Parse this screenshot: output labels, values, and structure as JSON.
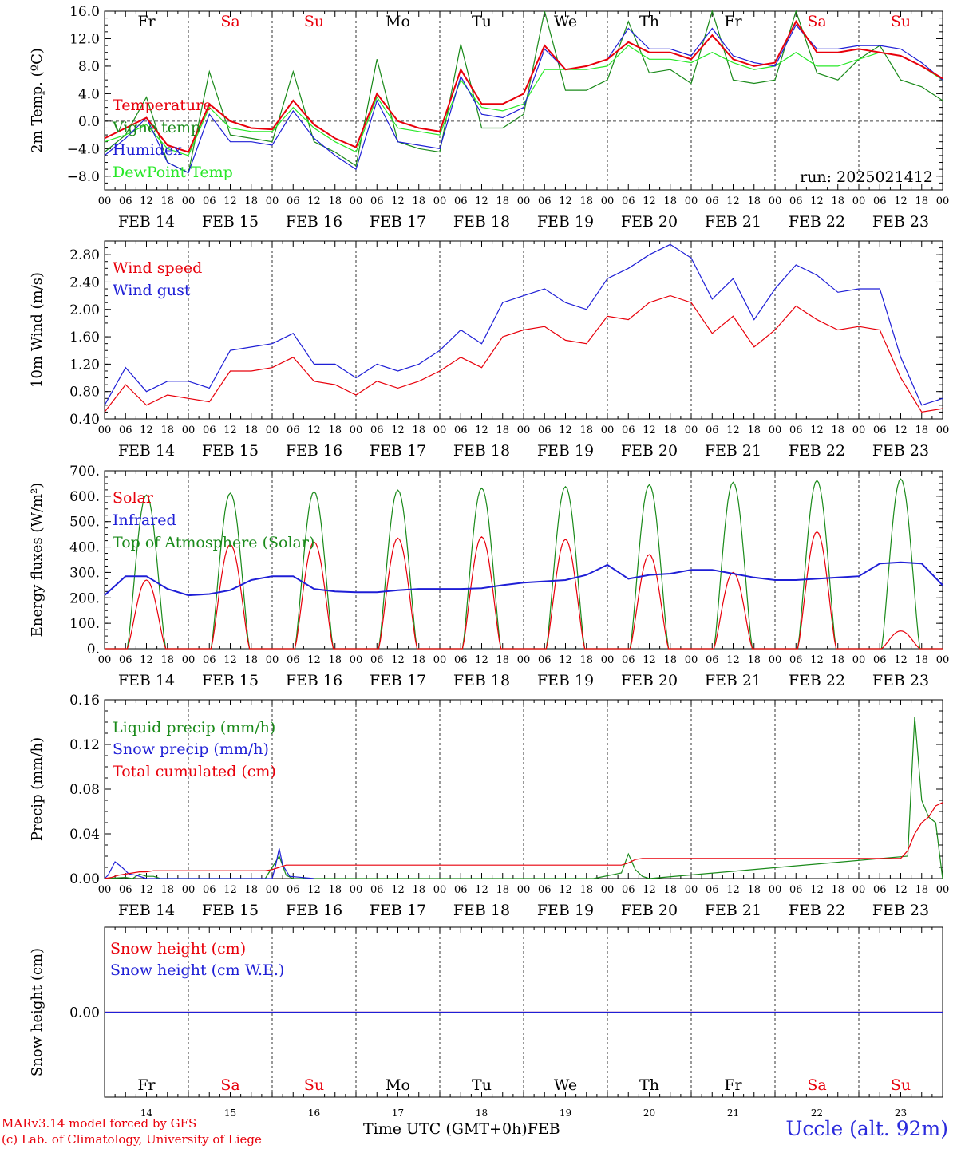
{
  "meteogram": {
    "run_label": "run: 2025021412",
    "day_names": [
      "Fr",
      "Sa",
      "Su",
      "Mo",
      "Tu",
      "We",
      "Th",
      "Fr",
      "Sa",
      "Su"
    ],
    "day_colors": [
      "#000000",
      "#e8000b",
      "#e8000b",
      "#000000",
      "#000000",
      "#000000",
      "#000000",
      "#000000",
      "#e8000b",
      "#e8000b"
    ],
    "date_labels": [
      "FEB 14",
      "FEB 15",
      "FEB 16",
      "FEB 17",
      "FEB 18",
      "FEB 19",
      "FEB 20",
      "FEB 21",
      "FEB 22",
      "FEB 23"
    ],
    "hour_labels": [
      "00",
      "06",
      "12",
      "18"
    ],
    "last_hour_label": "00",
    "bottom_day_numbers": [
      "14",
      "15",
      "16",
      "17",
      "18",
      "19",
      "20",
      "21",
      "22",
      "23"
    ],
    "x_title": "Time UTC (GMT+0h)",
    "x_month": "FEB",
    "credit_1": "MARv3.14 model forced by GFS",
    "credit_2": "(c) Lab. of Climatology, University of Liege",
    "station": "Uccle (alt. 92m)"
  },
  "chart_data": [
    {
      "type": "line",
      "ylabel": "2m Temp. (ºC)",
      "ylim": [
        -10,
        16
      ],
      "yticks": [
        -8,
        -4,
        0,
        4,
        8,
        12,
        16
      ],
      "ytick_labels": [
        "−8.0",
        "−4.0",
        "0.0",
        "4.0",
        "8.0",
        "12.0",
        "16.0"
      ],
      "x_unit": "hours since FEB 14 00 UTC",
      "x_range": [
        0,
        240
      ],
      "zero_line": true,
      "series": [
        {
          "name": "Temperature",
          "color": "#e8000b",
          "x": [
            0,
            6,
            12,
            18,
            24,
            30,
            36,
            42,
            48,
            54,
            60,
            66,
            72,
            78,
            84,
            90,
            96,
            102,
            108,
            114,
            120,
            126,
            132,
            138,
            144,
            150,
            156,
            162,
            168,
            174,
            180,
            186,
            192,
            198,
            204,
            210,
            216,
            222,
            228,
            234,
            240
          ],
          "y": [
            -2.5,
            -1,
            0.5,
            -3.5,
            -4.5,
            2.5,
            0,
            -1,
            -1.2,
            3,
            -0.5,
            -2.5,
            -3.8,
            4,
            0,
            -1,
            -1.5,
            7.5,
            2.5,
            2.5,
            4,
            11,
            7.5,
            8,
            9,
            11.5,
            10,
            10,
            9,
            12.5,
            9,
            8,
            8.5,
            14.5,
            10,
            10,
            10.5,
            10,
            9.5,
            8,
            6.2
          ]
        },
        {
          "name": "Vigne temp",
          "color": "#1a8a1a",
          "x": [
            0,
            6,
            12,
            18,
            24,
            30,
            36,
            42,
            48,
            54,
            60,
            66,
            72,
            78,
            84,
            90,
            96,
            102,
            108,
            114,
            120,
            126,
            132,
            138,
            144,
            150,
            156,
            162,
            168,
            174,
            180,
            186,
            192,
            198,
            204,
            210,
            216,
            222,
            228,
            234,
            240
          ],
          "y": [
            -4.5,
            -2,
            3.5,
            -6,
            -7.5,
            7.2,
            -2,
            -2.5,
            -3,
            7.2,
            -3,
            -4.5,
            -6.5,
            9,
            -3,
            -4,
            -4.5,
            11.2,
            -1,
            -1,
            1,
            16,
            4.5,
            4.5,
            6,
            14.5,
            7,
            7.5,
            5.5,
            16,
            6,
            5.5,
            6,
            17,
            7,
            6,
            9,
            11,
            6,
            5,
            3
          ]
        },
        {
          "name": "Humidex",
          "color": "#1f1fd6",
          "x": [
            0,
            6,
            12,
            18,
            24,
            30,
            36,
            42,
            48,
            54,
            60,
            66,
            72,
            78,
            84,
            90,
            96,
            102,
            108,
            114,
            120,
            126,
            132,
            138,
            144,
            150,
            156,
            162,
            168,
            174,
            180,
            186,
            192,
            198,
            204,
            210,
            216,
            222,
            228,
            234,
            240
          ],
          "y": [
            -5,
            -2.5,
            0.5,
            -6,
            -7.5,
            1,
            -3,
            -3,
            -3.5,
            1.5,
            -2.5,
            -5,
            -7,
            3,
            -3,
            -3.5,
            -4,
            6.5,
            1,
            0.5,
            2,
            10.5,
            7.5,
            8,
            9,
            13.5,
            10.5,
            10.5,
            9.5,
            13.5,
            9.5,
            8.5,
            8,
            14,
            10.5,
            10.5,
            11,
            11,
            10.5,
            8.5,
            6
          ]
        },
        {
          "name": "DewPoint Temp",
          "color": "#28e828",
          "x": [
            0,
            6,
            12,
            18,
            24,
            30,
            36,
            42,
            48,
            54,
            60,
            66,
            72,
            78,
            84,
            90,
            96,
            102,
            108,
            114,
            120,
            126,
            132,
            138,
            144,
            150,
            156,
            162,
            168,
            174,
            180,
            186,
            192,
            198,
            204,
            210,
            216,
            222,
            228,
            234,
            240
          ],
          "y": [
            -3,
            -2,
            -0.5,
            -4,
            -5,
            2,
            -1,
            -1.5,
            -1.5,
            2,
            -1,
            -3,
            -4.5,
            3.5,
            -1,
            -1.5,
            -2,
            6,
            2,
            1.5,
            2.5,
            7.5,
            7.5,
            7.5,
            8,
            11,
            9,
            9,
            8.5,
            10,
            8.5,
            7.5,
            8,
            10,
            8,
            8,
            9,
            10,
            9.5,
            8,
            6
          ]
        }
      ]
    },
    {
      "type": "line",
      "ylabel": "10m Wind (m/s)",
      "ylim": [
        0.4,
        3.0
      ],
      "yticks": [
        0.4,
        0.8,
        1.2,
        1.6,
        2.0,
        2.4,
        2.8
      ],
      "ytick_labels": [
        "0.40",
        "0.80",
        "1.20",
        "1.60",
        "2.00",
        "2.40",
        "2.80"
      ],
      "x_unit": "hours since FEB 14 00 UTC",
      "x_range": [
        0,
        240
      ],
      "series": [
        {
          "name": "Wind speed",
          "color": "#e8000b",
          "x": [
            0,
            6,
            12,
            18,
            24,
            30,
            36,
            42,
            48,
            54,
            60,
            66,
            72,
            78,
            84,
            90,
            96,
            102,
            108,
            114,
            120,
            126,
            132,
            138,
            144,
            150,
            156,
            162,
            168,
            174,
            180,
            186,
            192,
            198,
            204,
            210,
            216,
            222,
            228,
            234,
            240
          ],
          "y": [
            0.5,
            0.9,
            0.6,
            0.75,
            0.7,
            0.65,
            1.1,
            1.1,
            1.15,
            1.3,
            0.95,
            0.9,
            0.75,
            0.95,
            0.85,
            0.95,
            1.1,
            1.3,
            1.15,
            1.6,
            1.7,
            1.75,
            1.55,
            1.5,
            1.9,
            1.85,
            2.1,
            2.2,
            2.1,
            1.65,
            1.9,
            1.45,
            1.7,
            2.05,
            1.85,
            1.7,
            1.75,
            1.7,
            1.0,
            0.5,
            0.55
          ]
        },
        {
          "name": "Wind gust",
          "color": "#1f1fd6",
          "x": [
            0,
            6,
            12,
            18,
            24,
            30,
            36,
            42,
            48,
            54,
            60,
            66,
            72,
            78,
            84,
            90,
            96,
            102,
            108,
            114,
            120,
            126,
            132,
            138,
            144,
            150,
            156,
            162,
            168,
            174,
            180,
            186,
            192,
            198,
            204,
            210,
            216,
            222,
            228,
            234,
            240
          ],
          "y": [
            0.6,
            1.15,
            0.8,
            0.95,
            0.95,
            0.85,
            1.4,
            1.45,
            1.5,
            1.65,
            1.2,
            1.2,
            1.0,
            1.2,
            1.1,
            1.2,
            1.4,
            1.7,
            1.5,
            2.1,
            2.2,
            2.3,
            2.1,
            2.0,
            2.45,
            2.6,
            2.8,
            2.95,
            2.75,
            2.15,
            2.45,
            1.85,
            2.3,
            2.65,
            2.5,
            2.25,
            2.3,
            2.3,
            1.3,
            0.6,
            0.7
          ]
        }
      ]
    },
    {
      "type": "line",
      "ylabel": "Energy fluxes (W/m²)",
      "ylim": [
        0,
        700
      ],
      "yticks": [
        0,
        100,
        200,
        300,
        400,
        500,
        600,
        700
      ],
      "ytick_labels": [
        "0.",
        "100.",
        "200.",
        "300.",
        "400.",
        "500.",
        "600.",
        "700."
      ],
      "x_unit": "hours since FEB 14 00 UTC",
      "x_range": [
        0,
        240
      ],
      "toa_peaks": [
        605,
        612,
        618,
        624,
        632,
        638,
        645,
        655,
        662,
        668
      ],
      "solar_peaks": [
        270,
        410,
        420,
        435,
        440,
        430,
        370,
        300,
        460,
        70
      ],
      "daylight_hours": [
        6.5,
        17.5
      ],
      "series": [
        {
          "name": "Solar",
          "color": "#e8000b"
        },
        {
          "name": "Infrared",
          "color": "#1f1fd6",
          "x": [
            0,
            6,
            12,
            18,
            24,
            30,
            36,
            42,
            48,
            54,
            60,
            66,
            72,
            78,
            84,
            90,
            96,
            102,
            108,
            114,
            120,
            126,
            132,
            138,
            144,
            150,
            156,
            162,
            168,
            174,
            180,
            186,
            192,
            198,
            204,
            210,
            216,
            222,
            228,
            234,
            240
          ],
          "y": [
            210,
            285,
            285,
            235,
            210,
            215,
            230,
            270,
            285,
            285,
            235,
            225,
            222,
            222,
            230,
            235,
            235,
            235,
            238,
            250,
            260,
            265,
            270,
            290,
            330,
            275,
            290,
            295,
            310,
            310,
            295,
            280,
            270,
            270,
            275,
            280,
            285,
            335,
            340,
            335,
            250
          ]
        },
        {
          "name": "Top of Atmosphere (Solar)",
          "color": "#1a8a1a"
        }
      ]
    },
    {
      "type": "line",
      "ylabel": "Precip (mm/h)",
      "ylim": [
        0,
        0.16
      ],
      "yticks": [
        0,
        0.04,
        0.08,
        0.12,
        0.16
      ],
      "ytick_labels": [
        "0.00",
        "0.04",
        "0.08",
        "0.12",
        "0.16"
      ],
      "x_unit": "hours since FEB 14 00 UTC",
      "x_range": [
        0,
        240
      ],
      "series": [
        {
          "name": "Liquid precip (mm/h)",
          "color": "#1a8a1a",
          "x": [
            0,
            6,
            8,
            10,
            12,
            14,
            16,
            24,
            46,
            48,
            50,
            52,
            54,
            60,
            140,
            148,
            150,
            152,
            154,
            156,
            230,
            232,
            234,
            236,
            238,
            240
          ],
          "y": [
            0,
            0.001,
            0.0,
            0.004,
            0.002,
            0.002,
            0,
            0,
            0,
            0.01,
            0.02,
            0.003,
            0,
            0,
            0,
            0.005,
            0.022,
            0.008,
            0.002,
            0,
            0.02,
            0.145,
            0.07,
            0.055,
            0.05,
            0.0
          ]
        },
        {
          "name": "Snow precip (mm/h)",
          "color": "#1f1fd6",
          "x": [
            0,
            1,
            3,
            5,
            7,
            9,
            12,
            40,
            48,
            49,
            50,
            51,
            53,
            60
          ],
          "y": [
            0,
            0.003,
            0.015,
            0.01,
            0.004,
            0.003,
            0,
            0,
            0,
            0.012,
            0.027,
            0.012,
            0.002,
            0
          ]
        },
        {
          "name": "Total cumulated (cm)",
          "color": "#e8000b",
          "x": [
            0,
            2,
            4,
            6,
            8,
            10,
            12,
            14,
            46,
            48,
            50,
            52,
            54,
            148,
            150,
            152,
            154,
            156,
            228,
            230,
            232,
            234,
            236,
            238,
            240
          ],
          "y": [
            0,
            0.001,
            0.003,
            0.004,
            0.005,
            0.006,
            0.006,
            0.007,
            0.007,
            0.008,
            0.01,
            0.012,
            0.012,
            0.012,
            0.014,
            0.017,
            0.018,
            0.018,
            0.018,
            0.025,
            0.04,
            0.05,
            0.055,
            0.065,
            0.068
          ]
        }
      ]
    },
    {
      "type": "line",
      "ylabel": "Snow height (cm)",
      "ylim": [
        -1,
        1
      ],
      "yticks": [
        0
      ],
      "ytick_labels": [
        "0.00"
      ],
      "x_unit": "hours since FEB 14 00 UTC",
      "x_range": [
        0,
        240
      ],
      "series": [
        {
          "name": "Snow height (cm)",
          "color": "#e8000b",
          "x": [
            0,
            240
          ],
          "y": [
            0,
            0
          ]
        },
        {
          "name": "Snow height (cm W.E.)",
          "color": "#1f1fd6",
          "x": [
            0,
            240
          ],
          "y": [
            0,
            0
          ]
        }
      ]
    }
  ]
}
